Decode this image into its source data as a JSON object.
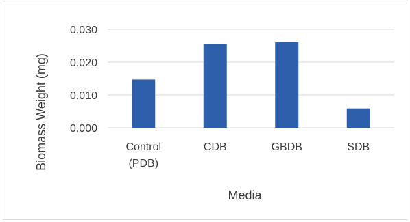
{
  "chart_data": {
    "type": "bar",
    "title": "",
    "xlabel": "Media",
    "ylabel": "Biomass Weight (mg)",
    "categories": [
      [
        "Control",
        "(PDB)"
      ],
      [
        "CDB"
      ],
      [
        "GBDB"
      ],
      [
        "SDB"
      ]
    ],
    "values": [
      0.0147,
      0.0256,
      0.0261,
      0.0059
    ],
    "ylim": [
      0,
      0.03
    ],
    "yticks": [
      "0.000",
      "0.010",
      "0.020",
      "0.030"
    ],
    "grid": true,
    "bar_color": "#2d5fab",
    "legend": "none"
  }
}
